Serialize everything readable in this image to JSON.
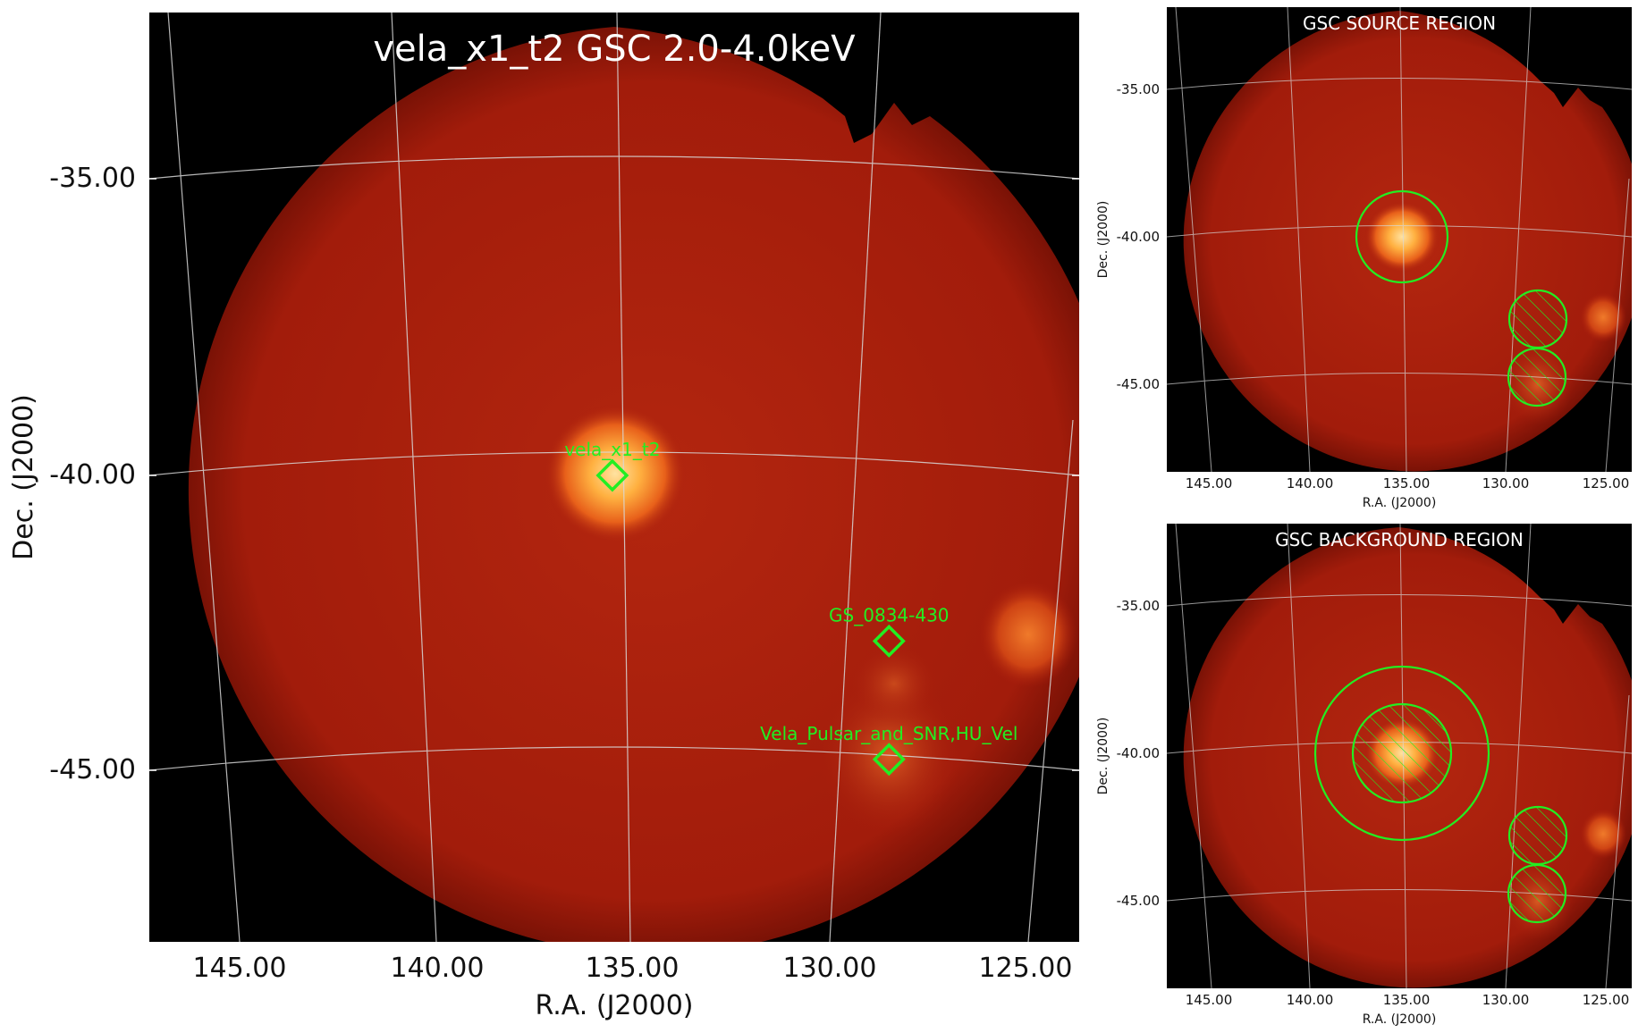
{
  "main_panel": {
    "title": "vela_x1_t2 GSC 2.0-4.0keV",
    "xlabel": "R.A. (J2000)",
    "ylabel": "Dec. (J2000)",
    "xticks": [
      "145.00",
      "140.00",
      "135.00",
      "130.00",
      "125.00"
    ],
    "yticks": [
      "-35.00",
      "-40.00",
      "-45.00"
    ],
    "sources": [
      {
        "name": "vela_x1_t2",
        "ra": 135.5,
        "dec": -40.0
      },
      {
        "name": "GS_0834-430",
        "ra": 128.5,
        "dec": -42.8
      },
      {
        "name": "Vela_Pulsar_and_SNR,HU_Vel",
        "ra": 128.5,
        "dec": -44.8
      }
    ],
    "marker_color": "#22ee22"
  },
  "source_panel": {
    "title": "GSC SOURCE REGION",
    "xlabel": "R.A. (J2000)",
    "ylabel": "Dec. (J2000)",
    "xticks": [
      "145.00",
      "140.00",
      "135.00",
      "130.00",
      "125.00"
    ],
    "yticks": [
      "-35.00",
      "-40.00",
      "-45.00"
    ]
  },
  "background_panel": {
    "title": "GSC BACKGROUND REGION",
    "xlabel": "R.A. (J2000)",
    "ylabel": "Dec. (J2000)",
    "xticks": [
      "145.00",
      "140.00",
      "135.00",
      "130.00",
      "125.00"
    ],
    "yticks": [
      "-35.00",
      "-40.00",
      "-45.00"
    ]
  },
  "colors": {
    "background": "#000000",
    "disk": "#a81c0c",
    "source_core": "#ffd080",
    "region": "#22ee22",
    "grid": "#d8d8d8"
  }
}
